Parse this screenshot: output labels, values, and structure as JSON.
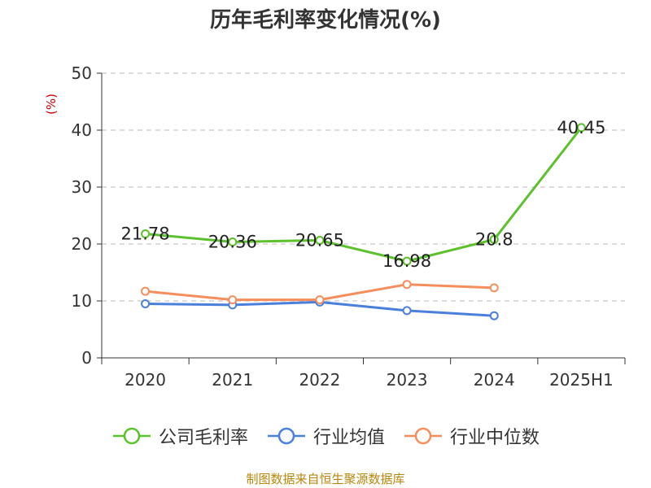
{
  "chart_data": {
    "type": "line",
    "title": "历年毛利率变化情况(%)",
    "ylabel": "(%)",
    "xlabel": "",
    "categories": [
      "2020",
      "2021",
      "2022",
      "2023",
      "2024",
      "2025H1"
    ],
    "ylim": [
      0,
      50
    ],
    "yticks": [
      0,
      10,
      20,
      30,
      40,
      50
    ],
    "grid": true,
    "legend_position": "bottom",
    "series": [
      {
        "name": "公司毛利率",
        "color": "#5cc12c",
        "values": [
          21.78,
          20.36,
          20.65,
          16.98,
          20.8,
          40.45
        ],
        "show_labels": true
      },
      {
        "name": "行业均值",
        "color": "#4a7fdb",
        "values": [
          9.5,
          9.3,
          9.8,
          8.3,
          7.4,
          null
        ],
        "show_labels": false
      },
      {
        "name": "行业中位数",
        "color": "#f58d5c",
        "values": [
          11.7,
          10.2,
          10.2,
          12.9,
          12.3,
          null
        ],
        "show_labels": false
      }
    ]
  },
  "source": "制图数据来自恒生聚源数据库"
}
